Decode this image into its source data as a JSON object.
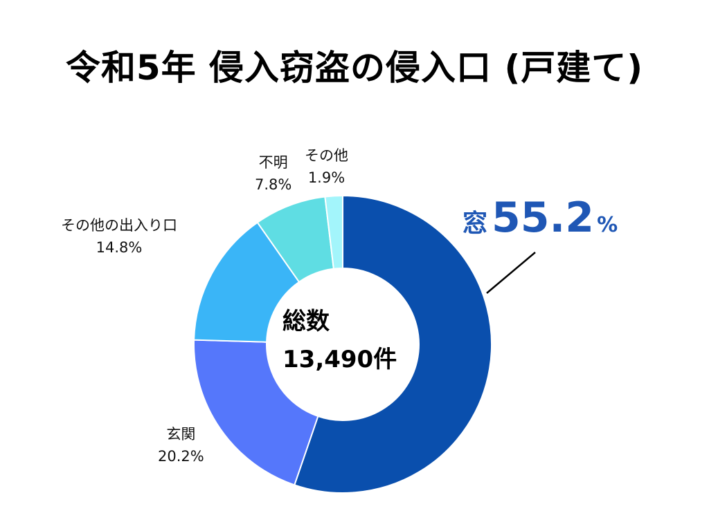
{
  "title": "令和5年 侵入窃盗の侵入口 (戸建て)",
  "center": {
    "label": "総数",
    "total": "13,490件"
  },
  "callout": {
    "name": "窓",
    "value": "55.2",
    "unit": "%"
  },
  "chart_data": {
    "type": "pie",
    "variant": "donut",
    "title": "令和5年 侵入窃盗の侵入口 (戸建て)",
    "unit": "%",
    "slices": [
      {
        "label": "窓",
        "value": 55.2,
        "color": "#0a4fad"
      },
      {
        "label": "玄関",
        "value": 20.2,
        "color": "#5577fb"
      },
      {
        "label": "その他の出入り口",
        "value": 14.8,
        "color": "#3ab5f7"
      },
      {
        "label": "不明",
        "value": 7.8,
        "color": "#5fdde3"
      },
      {
        "label": "その他",
        "value": 1.9,
        "color": "#a3f5fb"
      }
    ],
    "labels": [
      {
        "name": "玄関",
        "pct": "20.2%"
      },
      {
        "name": "その他の出入り口",
        "pct": "14.8%"
      },
      {
        "name": "不明",
        "pct": "7.8%"
      },
      {
        "name": "その他",
        "pct": "1.9%"
      }
    ]
  }
}
